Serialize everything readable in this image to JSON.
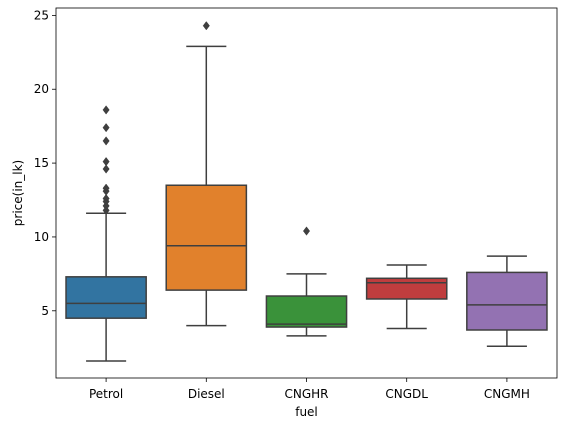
{
  "chart_data": {
    "type": "box",
    "xlabel": "fuel",
    "ylabel": "price(in_lk)",
    "ylim": [
      0.45,
      25.5
    ],
    "yticks": [
      5,
      10,
      15,
      20,
      25
    ],
    "grid": false,
    "categories": [
      "Petrol",
      "Diesel",
      "CNGHR",
      "CNGDL",
      "CNGMH"
    ],
    "colors": [
      "#3274a1",
      "#e1812c",
      "#3a923a",
      "#c03d3e",
      "#9372b2"
    ],
    "boxes": [
      {
        "category": "Petrol",
        "whisker_low": 1.6,
        "q1": 4.5,
        "median": 5.5,
        "q3": 7.3,
        "whisker_high": 11.6,
        "outliers": [
          11.8,
          12.1,
          12.4,
          12.6,
          13.1,
          13.3,
          14.6,
          15.1,
          16.5,
          17.4,
          18.6
        ]
      },
      {
        "category": "Diesel",
        "whisker_low": 4.0,
        "q1": 6.4,
        "median": 9.4,
        "q3": 13.5,
        "whisker_high": 22.9,
        "outliers": [
          24.3
        ]
      },
      {
        "category": "CNGHR",
        "whisker_low": 3.3,
        "q1": 3.9,
        "median": 4.1,
        "q3": 6.0,
        "whisker_high": 7.5,
        "outliers": [
          10.4
        ]
      },
      {
        "category": "CNGDL",
        "whisker_low": 3.8,
        "q1": 5.8,
        "median": 6.9,
        "q3": 7.2,
        "whisker_high": 8.1,
        "outliers": []
      },
      {
        "category": "CNGMH",
        "whisker_low": 2.6,
        "q1": 3.7,
        "median": 5.4,
        "q3": 7.6,
        "whisker_high": 8.7,
        "outliers": []
      }
    ]
  }
}
